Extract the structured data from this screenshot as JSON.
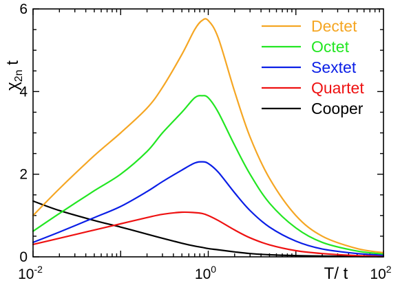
{
  "chart_data": {
    "type": "line",
    "xlabel": "T/ t",
    "ylabel": {
      "main": "χ",
      "sub": "2n",
      "tail": " t"
    },
    "xscale": "log",
    "xlim": [
      0.01,
      100
    ],
    "ylim": [
      0,
      6
    ],
    "grid": false,
    "legend_position": "top-right",
    "x_ticks": [
      {
        "base": "10",
        "exp": "-2",
        "value": 0.01
      },
      {
        "base": "10",
        "exp": "0",
        "value": 1
      },
      {
        "base": "10",
        "exp": "2",
        "value": 100
      }
    ],
    "y_ticks": [
      {
        "label": "0",
        "value": 0
      },
      {
        "label": "2",
        "value": 2
      },
      {
        "label": "4",
        "value": 4
      },
      {
        "label": "6",
        "value": 6
      }
    ],
    "x": [
      0.01,
      0.02,
      0.05,
      0.1,
      0.2,
      0.3,
      0.5,
      0.7,
      0.85,
      1.0,
      1.3,
      2,
      3,
      5,
      10,
      20,
      50,
      100
    ],
    "series": [
      {
        "name": "Dectet",
        "color": "#F5A623",
        "values": [
          1.0,
          1.65,
          2.45,
          3.0,
          3.6,
          4.1,
          4.9,
          5.5,
          5.72,
          5.72,
          5.3,
          4.0,
          2.9,
          1.9,
          1.0,
          0.5,
          0.2,
          0.1
        ]
      },
      {
        "name": "Octet",
        "color": "#22E622",
        "values": [
          0.62,
          1.05,
          1.6,
          2.0,
          2.55,
          3.0,
          3.5,
          3.85,
          3.9,
          3.85,
          3.5,
          2.7,
          2.0,
          1.3,
          0.7,
          0.35,
          0.14,
          0.07
        ]
      },
      {
        "name": "Sextet",
        "color": "#0A1EE6",
        "values": [
          0.35,
          0.6,
          0.95,
          1.22,
          1.58,
          1.82,
          2.1,
          2.27,
          2.3,
          2.26,
          2.05,
          1.55,
          1.12,
          0.72,
          0.38,
          0.19,
          0.08,
          0.04
        ]
      },
      {
        "name": "Quartet",
        "color": "#EE1111",
        "values": [
          0.3,
          0.45,
          0.65,
          0.8,
          0.95,
          1.03,
          1.08,
          1.07,
          1.05,
          1.0,
          0.88,
          0.65,
          0.46,
          0.29,
          0.15,
          0.08,
          0.03,
          0.02
        ]
      },
      {
        "name": "Cooper",
        "color": "#000000",
        "values": [
          1.35,
          1.12,
          0.88,
          0.72,
          0.55,
          0.45,
          0.33,
          0.26,
          0.23,
          0.2,
          0.17,
          0.12,
          0.08,
          0.05,
          0.03,
          0.02,
          0.01,
          0.005
        ]
      }
    ]
  }
}
